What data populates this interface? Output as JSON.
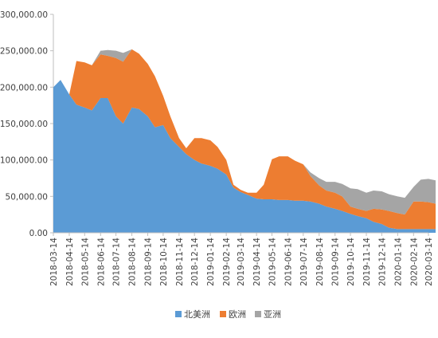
{
  "chart_data": {
    "type": "area",
    "stacked": true,
    "ylim": [
      0,
      300000
    ],
    "y_ticks": [
      0,
      50000,
      100000,
      150000,
      200000,
      250000,
      300000
    ],
    "y_tick_labels": [
      "0.00",
      "50,000.00",
      "100,000.00",
      "150,000.00",
      "200,000.00",
      "250,000.00",
      "300,000.00"
    ],
    "x_tick_labels": [
      "2018-03-14",
      "2018-04-14",
      "2018-05-14",
      "2018-06-14",
      "2018-07-14",
      "2018-08-14",
      "2018-09-14",
      "2018-10-14",
      "2018-11-14",
      "2018-12-14",
      "2019-01-14",
      "2019-02-14",
      "2019-03-14",
      "2019-04-14",
      "2019-05-14",
      "2019-06-14",
      "2019-07-14",
      "2019-08-14",
      "2019-09-14",
      "2019-10-14",
      "2019-11-14",
      "2019-12-14",
      "2020-01-14",
      "2020-02-14",
      "2020-03-14"
    ],
    "x": [
      "2018-03-14",
      "2018-03-28",
      "2018-04-14",
      "2018-04-28",
      "2018-05-14",
      "2018-05-28",
      "2018-06-14",
      "2018-06-28",
      "2018-07-14",
      "2018-07-28",
      "2018-08-14",
      "2018-08-28",
      "2018-09-14",
      "2018-09-28",
      "2018-10-14",
      "2018-10-28",
      "2018-11-14",
      "2018-11-28",
      "2018-12-14",
      "2018-12-28",
      "2019-01-14",
      "2019-01-28",
      "2019-02-14",
      "2019-02-28",
      "2019-03-14",
      "2019-03-28",
      "2019-04-14",
      "2019-04-28",
      "2019-05-14",
      "2019-05-28",
      "2019-06-14",
      "2019-06-28",
      "2019-07-14",
      "2019-07-28",
      "2019-08-14",
      "2019-08-28",
      "2019-09-14",
      "2019-09-28",
      "2019-10-14",
      "2019-10-28",
      "2019-11-14",
      "2019-11-28",
      "2019-12-14",
      "2019-12-28",
      "2020-01-14",
      "2020-01-28",
      "2020-02-14",
      "2020-02-28",
      "2020-03-14",
      "2020-03-28"
    ],
    "series": [
      {
        "name": "北美洲",
        "color": "#5B9BD5",
        "values": [
          200000,
          210000,
          190000,
          176000,
          172000,
          168000,
          185000,
          185000,
          160000,
          150000,
          172000,
          170000,
          160000,
          145000,
          148000,
          130000,
          118000,
          108000,
          100000,
          95000,
          92000,
          88000,
          80000,
          62000,
          56000,
          52000,
          47000,
          46000,
          46000,
          45000,
          45000,
          44000,
          44000,
          43000,
          40000,
          36000,
          33000,
          30000,
          26000,
          23000,
          20000,
          15000,
          12000,
          7000,
          5000,
          5000,
          5000,
          5000,
          5000,
          5000
        ]
      },
      {
        "name": "欧洲",
        "color": "#ED7D31",
        "values": [
          0,
          0,
          0,
          60000,
          62000,
          62000,
          60000,
          58000,
          80000,
          85000,
          80000,
          76000,
          72000,
          70000,
          40000,
          30000,
          12000,
          8000,
          30000,
          35000,
          35000,
          30000,
          20000,
          4000,
          3000,
          3000,
          8000,
          20000,
          55000,
          60000,
          60000,
          55000,
          50000,
          35000,
          25000,
          22000,
          22000,
          20000,
          10000,
          10000,
          10000,
          18000,
          20000,
          23000,
          22000,
          20000,
          38000,
          38000,
          37000,
          35000
        ]
      },
      {
        "name": "亚洲",
        "color": "#A5A5A5",
        "values": [
          0,
          0,
          0,
          0,
          0,
          0,
          5000,
          8000,
          10000,
          12000,
          0,
          0,
          0,
          0,
          0,
          0,
          0,
          0,
          0,
          0,
          0,
          0,
          0,
          0,
          0,
          0,
          0,
          0,
          0,
          0,
          0,
          0,
          0,
          5000,
          10000,
          12000,
          15000,
          17000,
          25000,
          27000,
          25000,
          25000,
          25000,
          23000,
          23000,
          23000,
          20000,
          30000,
          32000,
          32000
        ]
      }
    ],
    "legend": {
      "position": "bottom",
      "entries": [
        "北美洲",
        "欧洲",
        "亚洲"
      ]
    },
    "grid": false,
    "xlabel": "",
    "ylabel": "",
    "title": ""
  }
}
